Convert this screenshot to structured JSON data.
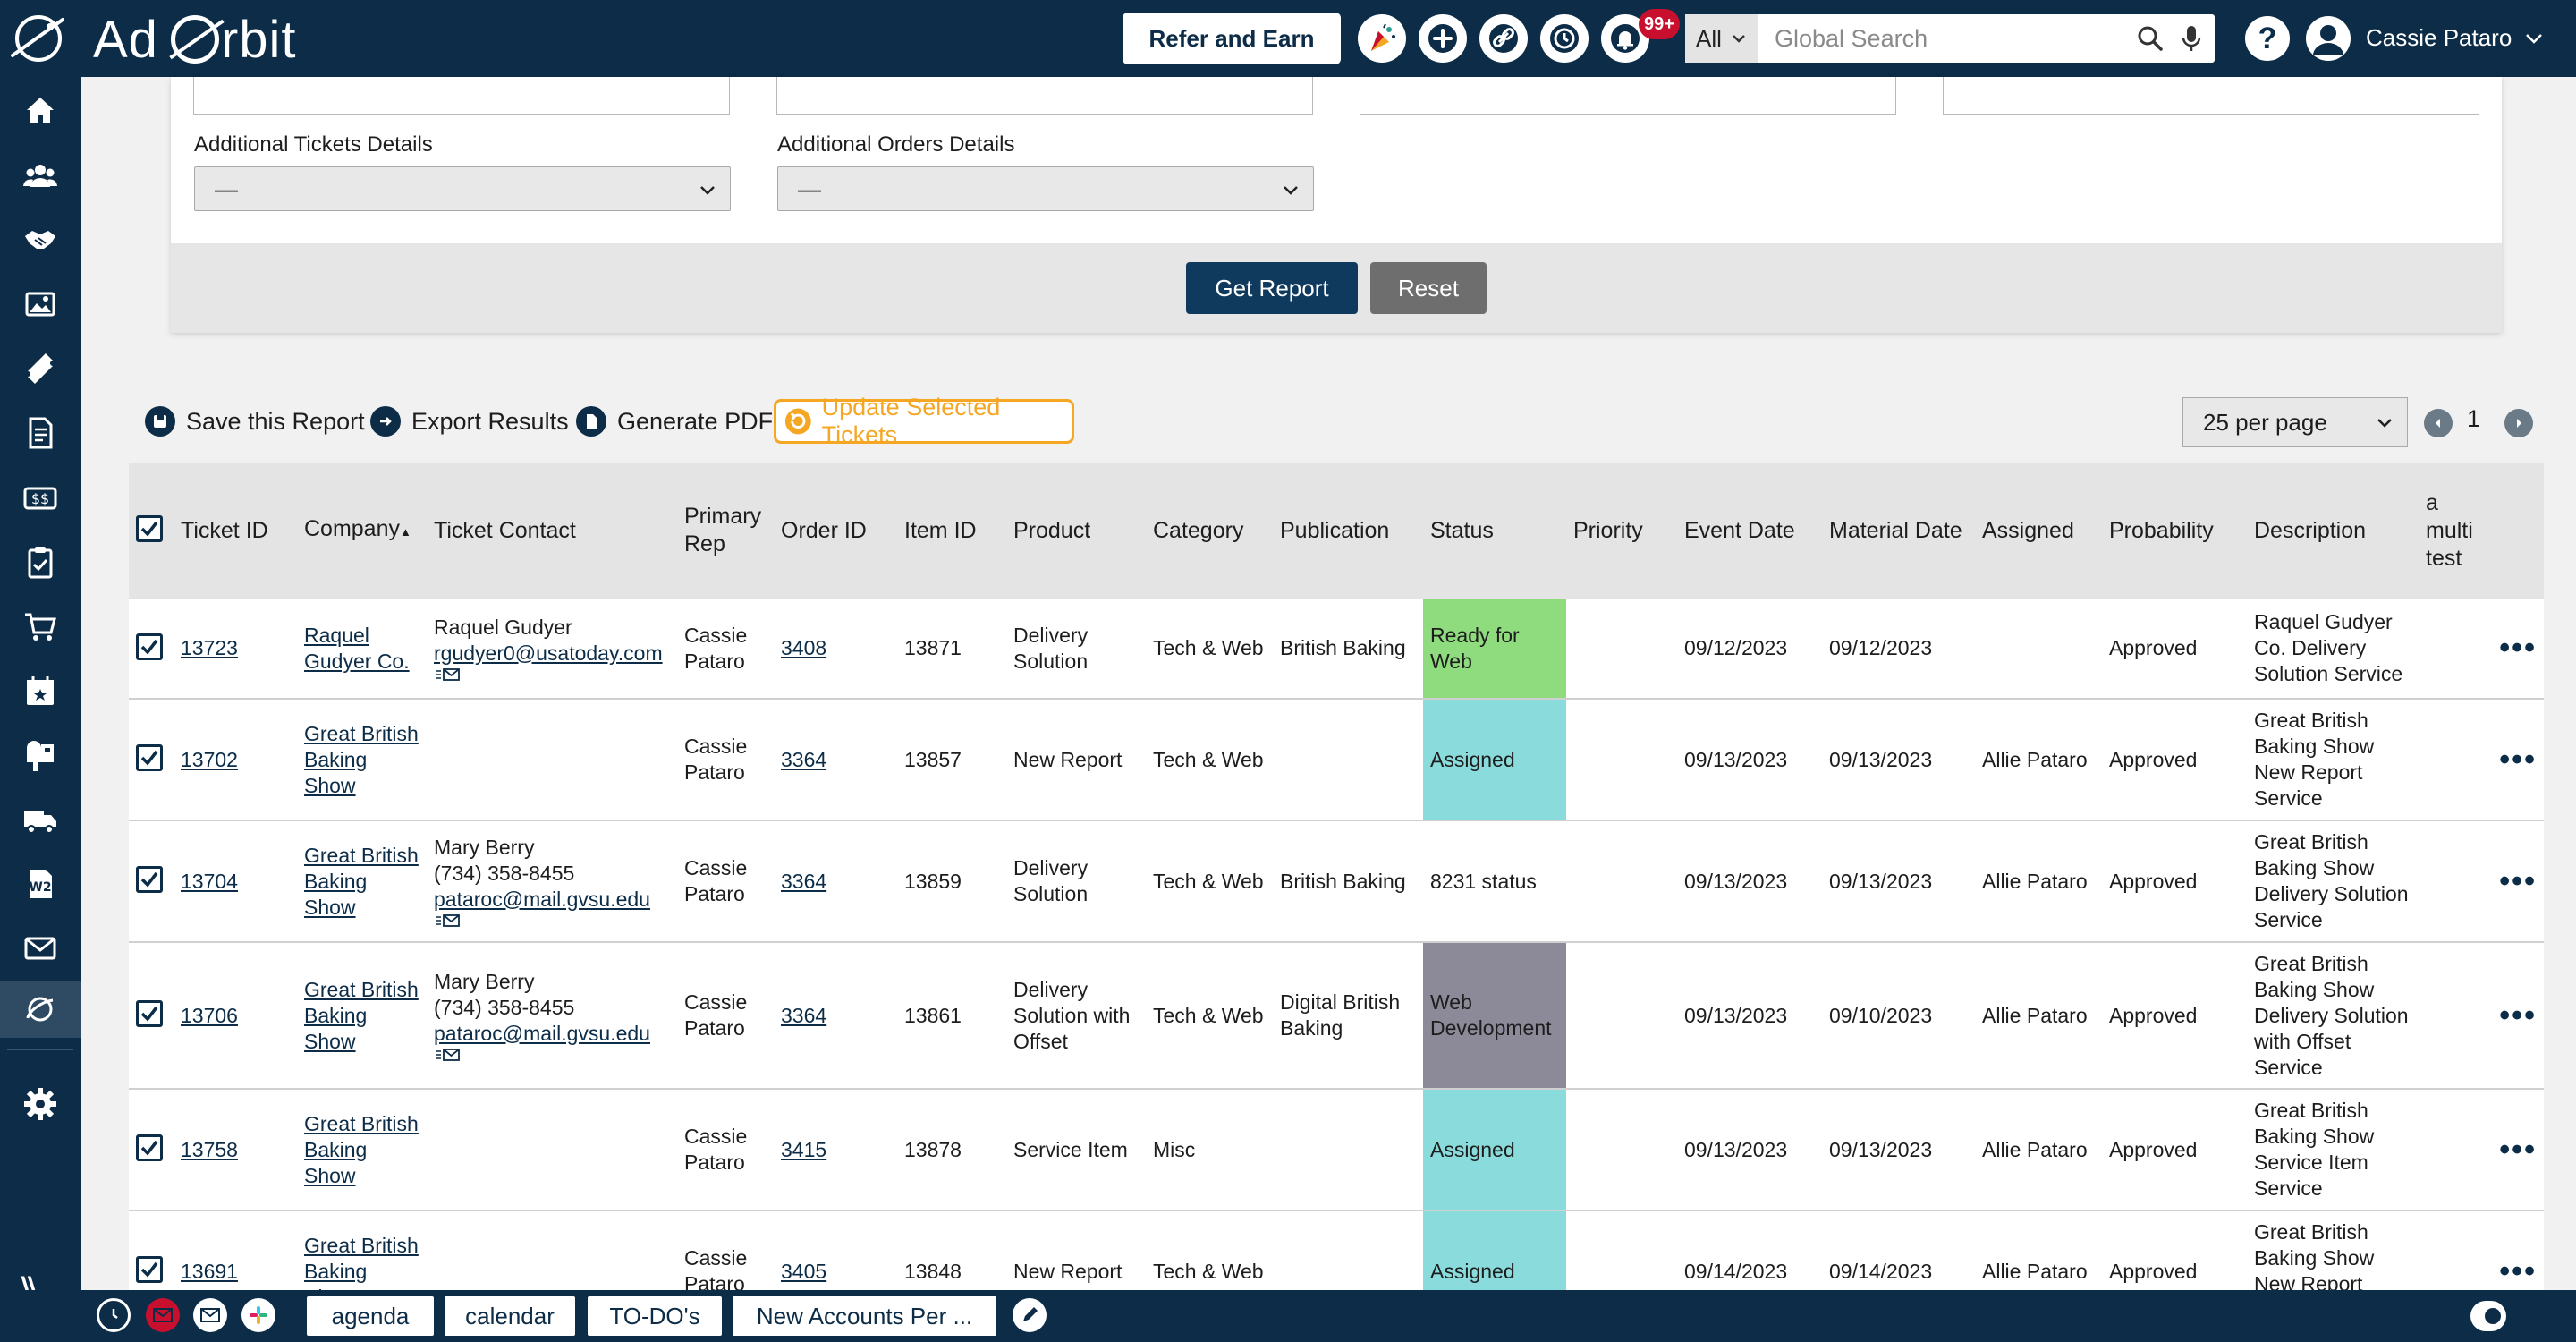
{
  "brand": {
    "name_pre": "Ad",
    "name_post": "rbit"
  },
  "header": {
    "refer_label": "Refer and Earn",
    "notif_badge": "99+",
    "search_scope": "All",
    "search_placeholder": "Global Search",
    "help_label": "?",
    "user_name": "Cassie Pataro"
  },
  "sidebar": {
    "items": [
      "home-icon",
      "users-icon",
      "handshake-icon",
      "images-icon",
      "ticket-icon",
      "document-icon",
      "money-icon",
      "clipboard-icon",
      "cart-icon",
      "calendar-icon",
      "mailbox-icon",
      "truck-icon",
      "w2-icon",
      "mail-icon",
      "orbit-icon",
      "gear-icon"
    ]
  },
  "filters": {
    "tickets_label": "Additional Tickets Details",
    "tickets_value": "—",
    "orders_label": "Additional Orders Details",
    "orders_value": "—",
    "get_report": "Get Report",
    "reset": "Reset"
  },
  "actions": {
    "save": "Save this Report",
    "export": "Export Results",
    "pdf": "Generate PDF",
    "update": "Update Selected Tickets",
    "per_page": "25 per page",
    "page": "1"
  },
  "table": {
    "headers": {
      "ticket_id": "Ticket ID",
      "company": "Company",
      "company_sort": "▲",
      "ticket_contact": "Ticket Contact",
      "primary_rep": "Primary Rep",
      "order_id": "Order ID",
      "item_id": "Item ID",
      "product": "Product",
      "category": "Category",
      "publication": "Publication",
      "status": "Status",
      "priority": "Priority",
      "event_date": "Event Date",
      "material_date": "Material Date",
      "assigned": "Assigned",
      "probability": "Probability",
      "description": "Description",
      "multi": "a multi test"
    },
    "rows": [
      {
        "ticket": "13723",
        "company": "Raquel Gudyer Co.",
        "contact_name": "Raquel Gudyer",
        "contact_phone": "",
        "contact_email": "rgudyer0@usatoday.com",
        "rep": "Cassie Pataro",
        "order": "3408",
        "item": "13871",
        "product": "Delivery Solution",
        "category": "Tech & Web",
        "publication": "British Baking",
        "status": "Ready for Web",
        "status_color": "#8fdc7e",
        "priority": "",
        "event": "09/12/2023",
        "material": "09/12/2023",
        "assigned": "",
        "probability": "Approved",
        "description": "Raquel Gudyer Co. Delivery Solution Service",
        "h": 112
      },
      {
        "ticket": "13702",
        "company": "Great British Baking Show",
        "contact_name": "",
        "contact_phone": "",
        "contact_email": "",
        "rep": "Cassie Pataro",
        "order": "3364",
        "item": "13857",
        "product": "New Report",
        "category": "Tech & Web",
        "publication": "",
        "status": "Assigned",
        "status_color": "#8adcdc",
        "priority": "",
        "event": "09/13/2023",
        "material": "09/13/2023",
        "assigned": "Allie Pataro",
        "probability": "Approved",
        "description": "Great British Baking Show New Report Service",
        "h": 136
      },
      {
        "ticket": "13704",
        "company": "Great British Baking Show",
        "contact_name": "Mary Berry",
        "contact_phone": "(734) 358-8455",
        "contact_email": "pataroc@mail.gvsu.edu",
        "rep": "Cassie Pataro",
        "order": "3364",
        "item": "13859",
        "product": "Delivery Solution",
        "category": "Tech & Web",
        "publication": "British Baking",
        "status": "8231 status",
        "status_color": "",
        "priority": "",
        "event": "09/13/2023",
        "material": "09/13/2023",
        "assigned": "Allie Pataro",
        "probability": "Approved",
        "description": "Great British Baking Show Delivery Solution Service",
        "h": 136
      },
      {
        "ticket": "13706",
        "company": "Great British Baking Show",
        "contact_name": "Mary Berry",
        "contact_phone": "(734) 358-8455",
        "contact_email": "pataroc@mail.gvsu.edu",
        "rep": "Cassie Pataro",
        "order": "3364",
        "item": "13861",
        "product": "Delivery Solution with Offset",
        "category": "Tech & Web",
        "publication": "Digital British Baking",
        "status": "Web Development",
        "status_color": "#8c8a99",
        "priority": "",
        "event": "09/13/2023",
        "material": "09/10/2023",
        "assigned": "Allie Pataro",
        "probability": "Approved",
        "description": "Great British Baking Show Delivery Solution with Offset Service",
        "h": 164
      },
      {
        "ticket": "13758",
        "company": "Great British Baking Show",
        "contact_name": "",
        "contact_phone": "",
        "contact_email": "",
        "rep": "Cassie Pataro",
        "order": "3415",
        "item": "13878",
        "product": "Service Item",
        "category": "Misc",
        "publication": "",
        "status": "Assigned",
        "status_color": "#8adcdc",
        "priority": "",
        "event": "09/13/2023",
        "material": "09/13/2023",
        "assigned": "Allie Pataro",
        "probability": "Approved",
        "description": "Great British Baking Show Service Item Service",
        "h": 136
      },
      {
        "ticket": "13691",
        "company": "Great British Baking Show",
        "contact_name": "",
        "contact_phone": "",
        "contact_email": "",
        "rep": "Cassie Pataro",
        "order": "3405",
        "item": "13848",
        "product": "New Report",
        "category": "Tech & Web",
        "publication": "",
        "status": "Assigned",
        "status_color": "#8adcdc",
        "priority": "",
        "event": "09/14/2023",
        "material": "09/14/2023",
        "assigned": "Allie Pataro",
        "probability": "Approved",
        "description": "Great British Baking Show New Report Service",
        "h": 136
      }
    ]
  },
  "bottombar": {
    "tabs": [
      "agenda",
      "calendar",
      "TO-DO's",
      "New Accounts Per ..."
    ]
  }
}
